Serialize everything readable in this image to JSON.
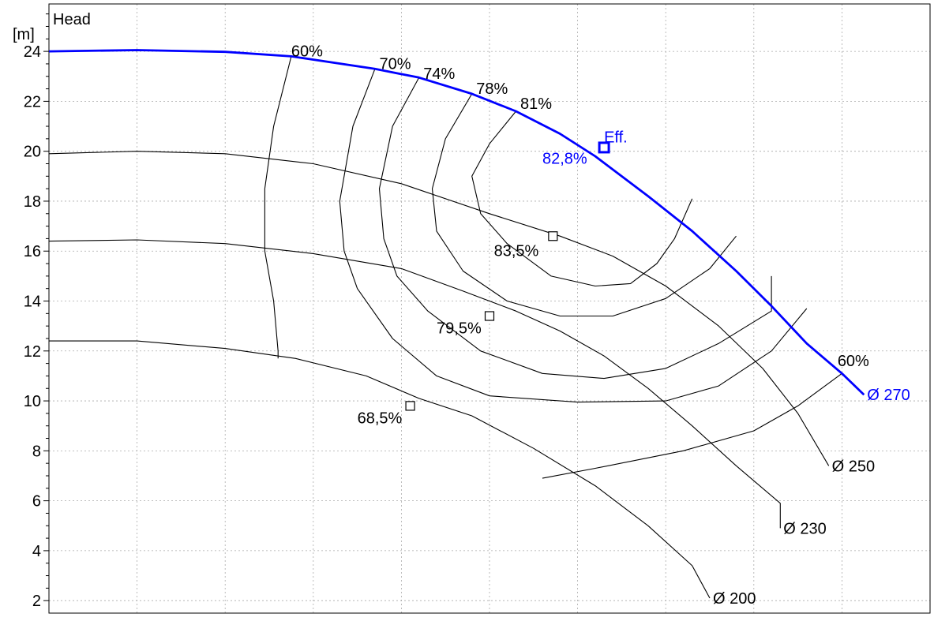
{
  "chart_data": {
    "type": "line",
    "title": "",
    "ylabel": "Head",
    "yunit": "[m]",
    "xlabel": "",
    "ylim": [
      1.5,
      25.9
    ],
    "xlim": [
      0,
      10
    ],
    "y_ticks": [
      2,
      4,
      6,
      8,
      10,
      12,
      14,
      16,
      18,
      20,
      22,
      24
    ],
    "grid": true,
    "colors": {
      "axis": "#000000",
      "grid": "#aaaaaa",
      "primary": "#0000ff"
    },
    "series": [
      {
        "name": "Ø 270",
        "color": "#0000ff",
        "points": [
          [
            0,
            24.0
          ],
          [
            1.0,
            24.05
          ],
          [
            2.0,
            23.98
          ],
          [
            2.75,
            23.8
          ],
          [
            3.7,
            23.3
          ],
          [
            4.2,
            22.95
          ],
          [
            4.8,
            22.3
          ],
          [
            5.3,
            21.6
          ],
          [
            5.8,
            20.7
          ],
          [
            6.2,
            19.8
          ],
          [
            6.8,
            18.2
          ],
          [
            7.3,
            16.8
          ],
          [
            7.8,
            15.2
          ],
          [
            8.2,
            13.8
          ],
          [
            8.6,
            12.3
          ],
          [
            9.0,
            11.1
          ],
          [
            9.25,
            10.25
          ]
        ],
        "end_label": "Ø 270"
      },
      {
        "name": "Ø 250",
        "color": "#000000",
        "points": [
          [
            0,
            19.9
          ],
          [
            1.0,
            20.0
          ],
          [
            2.0,
            19.9
          ],
          [
            3.0,
            19.5
          ],
          [
            4.0,
            18.7
          ],
          [
            5.0,
            17.5
          ],
          [
            5.8,
            16.6
          ],
          [
            6.4,
            15.8
          ],
          [
            7.0,
            14.6
          ],
          [
            7.6,
            13.0
          ],
          [
            8.1,
            11.3
          ],
          [
            8.5,
            9.5
          ],
          [
            8.85,
            7.4
          ]
        ],
        "end_label": "Ø 250"
      },
      {
        "name": "Ø 230",
        "color": "#000000",
        "points": [
          [
            0,
            16.4
          ],
          [
            1.0,
            16.45
          ],
          [
            2.0,
            16.3
          ],
          [
            3.0,
            15.9
          ],
          [
            4.0,
            15.3
          ],
          [
            4.7,
            14.4
          ],
          [
            5.3,
            13.6
          ],
          [
            5.8,
            12.8
          ],
          [
            6.3,
            11.8
          ],
          [
            6.8,
            10.5
          ],
          [
            7.3,
            9.0
          ],
          [
            7.8,
            7.4
          ],
          [
            8.3,
            5.9
          ],
          [
            8.3,
            4.9
          ]
        ],
        "end_label": "Ø 230"
      },
      {
        "name": "Ø 200",
        "color": "#000000",
        "points": [
          [
            0,
            12.4
          ],
          [
            1.0,
            12.4
          ],
          [
            2.0,
            12.1
          ],
          [
            2.8,
            11.7
          ],
          [
            3.6,
            11.0
          ],
          [
            4.2,
            10.1
          ],
          [
            4.8,
            9.4
          ],
          [
            5.5,
            8.1
          ],
          [
            6.2,
            6.6
          ],
          [
            6.8,
            5.0
          ],
          [
            7.3,
            3.4
          ],
          [
            7.5,
            2.1
          ]
        ],
        "end_label": "Ø 200"
      }
    ],
    "efficiency_contours": [
      {
        "label": "60%",
        "points": [
          [
            2.75,
            23.8
          ],
          [
            2.55,
            21.0
          ],
          [
            2.45,
            18.5
          ],
          [
            2.45,
            16.0
          ],
          [
            2.55,
            14.0
          ],
          [
            2.6,
            12.0
          ],
          [
            2.6,
            11.7
          ]
        ]
      },
      {
        "label": "60%",
        "points": [
          [
            9.0,
            11.1
          ],
          [
            8.5,
            9.8
          ],
          [
            8.0,
            8.8
          ],
          [
            7.2,
            8.0
          ],
          [
            6.2,
            7.3
          ],
          [
            5.6,
            6.9
          ]
        ]
      },
      {
        "label": "70%",
        "points": [
          [
            3.7,
            23.3
          ],
          [
            3.45,
            21.0
          ],
          [
            3.3,
            18.0
          ],
          [
            3.35,
            16.0
          ],
          [
            3.5,
            14.5
          ],
          [
            3.9,
            12.5
          ],
          [
            4.4,
            11.0
          ],
          [
            5.0,
            10.2
          ],
          [
            6.0,
            9.95
          ],
          [
            7.0,
            10.0
          ],
          [
            7.6,
            10.6
          ],
          [
            8.2,
            12.0
          ],
          [
            8.6,
            13.7
          ]
        ]
      },
      {
        "label": "74%",
        "points": [
          [
            4.2,
            22.95
          ],
          [
            3.9,
            21.0
          ],
          [
            3.75,
            18.5
          ],
          [
            3.8,
            16.5
          ],
          [
            3.95,
            15.0
          ],
          [
            4.3,
            13.6
          ],
          [
            4.9,
            12.0
          ],
          [
            5.6,
            11.1
          ],
          [
            6.3,
            10.9
          ],
          [
            7.0,
            11.3
          ],
          [
            7.6,
            12.3
          ],
          [
            8.2,
            13.6
          ],
          [
            8.2,
            15.0
          ]
        ]
      },
      {
        "label": "78%",
        "points": [
          [
            4.8,
            22.3
          ],
          [
            4.5,
            20.5
          ],
          [
            4.35,
            18.5
          ],
          [
            4.4,
            16.8
          ],
          [
            4.7,
            15.2
          ],
          [
            5.2,
            14.0
          ],
          [
            5.8,
            13.4
          ],
          [
            6.4,
            13.4
          ],
          [
            7.0,
            14.1
          ],
          [
            7.5,
            15.3
          ],
          [
            7.8,
            16.6
          ]
        ]
      },
      {
        "label": "81%",
        "points": [
          [
            5.3,
            21.6
          ],
          [
            5.0,
            20.3
          ],
          [
            4.8,
            19.0
          ],
          [
            4.9,
            17.5
          ],
          [
            5.2,
            16.3
          ],
          [
            5.7,
            15.0
          ],
          [
            6.2,
            14.6
          ],
          [
            6.6,
            14.7
          ],
          [
            6.9,
            15.5
          ],
          [
            7.1,
            16.5
          ],
          [
            7.3,
            18.1
          ]
        ]
      }
    ],
    "annotations": [
      {
        "text": "60%",
        "x": 2.75,
        "y": 23.8,
        "color": "#000000"
      },
      {
        "text": "70%",
        "x": 3.75,
        "y": 23.3,
        "color": "#000000"
      },
      {
        "text": "74%",
        "x": 4.25,
        "y": 22.9,
        "color": "#000000"
      },
      {
        "text": "78%",
        "x": 4.85,
        "y": 22.3,
        "color": "#000000"
      },
      {
        "text": "81%",
        "x": 5.35,
        "y": 21.7,
        "color": "#000000"
      },
      {
        "text": "Eff.",
        "x": 6.3,
        "y": 20.35,
        "color": "#0000ff"
      },
      {
        "text": "82,8%",
        "x": 5.6,
        "y": 19.5,
        "color": "#0000ff"
      },
      {
        "text": "83,5%",
        "x": 5.05,
        "y": 15.8,
        "color": "#000000"
      },
      {
        "text": "79,5%",
        "x": 4.4,
        "y": 12.7,
        "color": "#000000"
      },
      {
        "text": "68,5%",
        "x": 3.5,
        "y": 9.1,
        "color": "#000000"
      },
      {
        "text": "60%",
        "x": 8.95,
        "y": 11.4,
        "color": "#000000"
      }
    ],
    "markers": [
      {
        "name": "eff-270",
        "x": 6.3,
        "y": 20.15,
        "color": "#0000ff"
      },
      {
        "name": "eff-250",
        "x": 5.72,
        "y": 16.6,
        "color": "#000000"
      },
      {
        "name": "eff-230",
        "x": 5.0,
        "y": 13.4,
        "color": "#000000"
      },
      {
        "name": "eff-200",
        "x": 4.1,
        "y": 9.8,
        "color": "#000000"
      }
    ]
  }
}
